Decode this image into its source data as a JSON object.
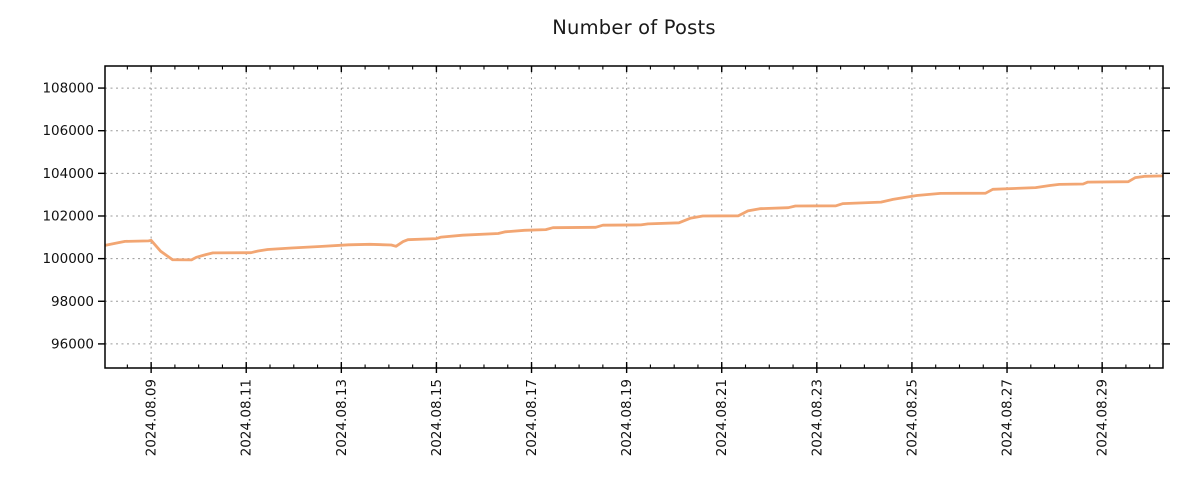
{
  "chart_data": {
    "type": "line",
    "title": "Number of Posts",
    "xlabel": "",
    "ylabel": "",
    "grid": "dashed",
    "legend": "none",
    "line_color": "#F2A673",
    "grid_color": "#9a9a9a",
    "axis_color": "#000000",
    "y_ticks": [
      96000,
      98000,
      100000,
      102000,
      104000,
      106000,
      108000
    ],
    "y_domain": [
      94870,
      109035
    ],
    "x_domain_days": [
      0.03,
      22.28
    ],
    "x_minor_step_days": 0.5,
    "x_ticks": [
      {
        "day": 1,
        "label": "2024.08.09"
      },
      {
        "day": 3,
        "label": "2024.08.11"
      },
      {
        "day": 5,
        "label": "2024.08.13"
      },
      {
        "day": 7,
        "label": "2024.08.15"
      },
      {
        "day": 9,
        "label": "2024.08.17"
      },
      {
        "day": 11,
        "label": "2024.08.19"
      },
      {
        "day": 13,
        "label": "2024.08.21"
      },
      {
        "day": 15,
        "label": "2024.08.23"
      },
      {
        "day": 17,
        "label": "2024.08.25"
      },
      {
        "day": 19,
        "label": "2024.08.27"
      },
      {
        "day": 21,
        "label": "2024.08.29"
      }
    ],
    "series": [
      {
        "name": "number-of-posts",
        "points": [
          [
            0.03,
            100620
          ],
          [
            0.25,
            100720
          ],
          [
            0.45,
            100810
          ],
          [
            0.95,
            100830
          ],
          [
            1.0,
            100860
          ],
          [
            1.2,
            100350
          ],
          [
            1.45,
            99950
          ],
          [
            1.85,
            99940
          ],
          [
            1.95,
            100060
          ],
          [
            2.15,
            100190
          ],
          [
            2.3,
            100270
          ],
          [
            3.1,
            100280
          ],
          [
            3.25,
            100360
          ],
          [
            3.45,
            100430
          ],
          [
            3.95,
            100500
          ],
          [
            4.55,
            100570
          ],
          [
            5.15,
            100650
          ],
          [
            5.6,
            100670
          ],
          [
            6.05,
            100640
          ],
          [
            6.15,
            100580
          ],
          [
            6.3,
            100800
          ],
          [
            6.4,
            100890
          ],
          [
            7.0,
            100940
          ],
          [
            7.1,
            101010
          ],
          [
            7.55,
            101100
          ],
          [
            8.3,
            101180
          ],
          [
            8.45,
            101260
          ],
          [
            8.85,
            101330
          ],
          [
            9.3,
            101360
          ],
          [
            9.45,
            101450
          ],
          [
            10.35,
            101470
          ],
          [
            10.5,
            101570
          ],
          [
            11.3,
            101580
          ],
          [
            11.45,
            101630
          ],
          [
            12.1,
            101680
          ],
          [
            12.35,
            101900
          ],
          [
            12.6,
            102000
          ],
          [
            13.35,
            102010
          ],
          [
            13.45,
            102120
          ],
          [
            13.55,
            102240
          ],
          [
            13.8,
            102340
          ],
          [
            14.4,
            102390
          ],
          [
            14.55,
            102470
          ],
          [
            15.4,
            102480
          ],
          [
            15.55,
            102580
          ],
          [
            16.35,
            102650
          ],
          [
            16.6,
            102780
          ],
          [
            17.1,
            102960
          ],
          [
            17.6,
            103060
          ],
          [
            18.55,
            103070
          ],
          [
            18.7,
            103250
          ],
          [
            19.6,
            103330
          ],
          [
            19.9,
            103430
          ],
          [
            20.1,
            103480
          ],
          [
            20.6,
            103500
          ],
          [
            20.7,
            103590
          ],
          [
            21.55,
            103610
          ],
          [
            21.7,
            103800
          ],
          [
            21.9,
            103860
          ],
          [
            22.28,
            103880
          ]
        ]
      }
    ]
  }
}
